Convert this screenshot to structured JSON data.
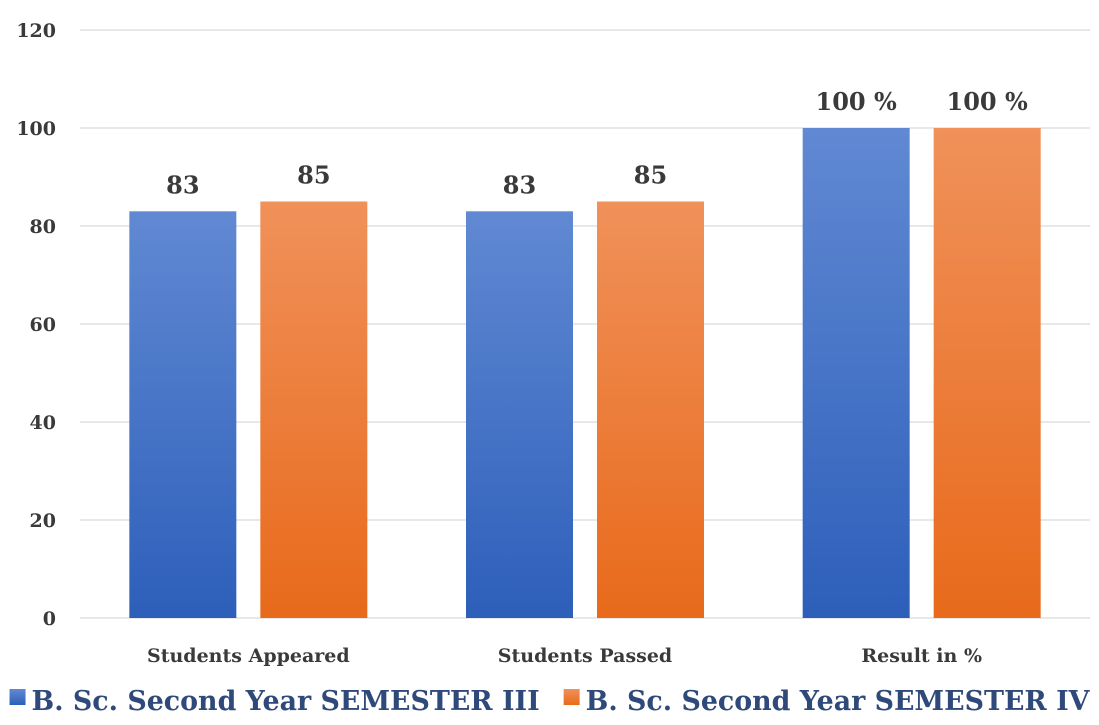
{
  "chart_data": {
    "type": "bar",
    "categories": [
      "Students Appeared",
      "Students Passed",
      "Result in %"
    ],
    "series": [
      {
        "name": "B. Sc. Second Year SEMESTER III",
        "values": [
          83,
          83,
          100
        ],
        "labels": [
          "83",
          "83",
          "100 %"
        ],
        "color_top": "#6189d3",
        "color_bottom": "#2d5fba"
      },
      {
        "name": "B. Sc. Second Year SEMESTER IV",
        "values": [
          85,
          85,
          100
        ],
        "labels": [
          "85",
          "85",
          "100 %"
        ],
        "color_top": "#f0915a",
        "color_bottom": "#e86a1b"
      }
    ],
    "ylim": [
      0,
      120
    ],
    "yticks": [
      0,
      20,
      40,
      60,
      80,
      100,
      120
    ],
    "grid": true,
    "legend": "bottom-center"
  }
}
